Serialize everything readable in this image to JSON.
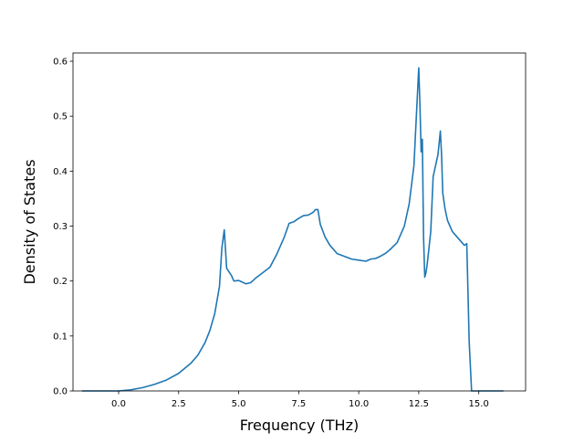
{
  "chart_data": {
    "type": "line",
    "title": "",
    "xlabel": "Frequency (THz)",
    "ylabel": "Density of States",
    "xlim": [
      -1.9,
      16.95
    ],
    "ylim": [
      0.0,
      0.615
    ],
    "xticks": [
      0.0,
      2.5,
      5.0,
      7.5,
      10.0,
      12.5,
      15.0
    ],
    "xtick_labels": [
      "0.0",
      "2.5",
      "5.0",
      "7.5",
      "10.0",
      "12.5",
      "15.0"
    ],
    "yticks": [
      0.0,
      0.1,
      0.2,
      0.3,
      0.4,
      0.5,
      0.6
    ],
    "ytick_labels": [
      "0.0",
      "0.1",
      "0.2",
      "0.3",
      "0.4",
      "0.5",
      "0.6"
    ],
    "grid": false,
    "legend": false,
    "line_color": "#1f77b4",
    "series": [
      {
        "x": [
          -1.5,
          -0.5,
          0.0,
          0.5,
          1.0,
          1.5,
          2.0,
          2.5,
          3.0,
          3.3,
          3.6,
          3.8,
          4.0,
          4.2,
          4.3,
          4.4,
          4.5,
          4.7,
          4.8,
          5.0,
          5.1,
          5.3,
          5.5,
          5.7,
          6.0,
          6.3,
          6.6,
          6.9,
          7.1,
          7.3,
          7.5,
          7.7,
          7.9,
          8.1,
          8.2,
          8.3,
          8.4,
          8.6,
          8.8,
          9.1,
          9.4,
          9.7,
          10.0,
          10.3,
          10.5,
          10.7,
          10.9,
          11.1,
          11.3,
          11.6,
          11.9,
          12.1,
          12.3,
          12.4,
          12.5,
          12.55,
          12.6,
          12.65,
          12.7,
          12.75,
          12.8,
          12.85,
          13.0,
          13.1,
          13.2,
          13.3,
          13.4,
          13.45,
          13.5,
          13.6,
          13.7,
          13.9,
          14.1,
          14.3,
          14.4,
          14.5,
          14.55,
          14.6,
          14.7,
          15.0,
          16.0
        ],
        "y": [
          0.0,
          0.0,
          0.0,
          0.002,
          0.006,
          0.012,
          0.02,
          0.032,
          0.05,
          0.065,
          0.088,
          0.11,
          0.14,
          0.19,
          0.26,
          0.293,
          0.223,
          0.21,
          0.2,
          0.201,
          0.199,
          0.195,
          0.197,
          0.205,
          0.215,
          0.225,
          0.25,
          0.28,
          0.305,
          0.308,
          0.314,
          0.319,
          0.32,
          0.325,
          0.33,
          0.33,
          0.303,
          0.28,
          0.265,
          0.25,
          0.245,
          0.24,
          0.238,
          0.236,
          0.24,
          0.241,
          0.245,
          0.25,
          0.257,
          0.27,
          0.3,
          0.34,
          0.41,
          0.5,
          0.588,
          0.52,
          0.435,
          0.458,
          0.28,
          0.207,
          0.215,
          0.23,
          0.29,
          0.39,
          0.41,
          0.43,
          0.473,
          0.43,
          0.36,
          0.33,
          0.31,
          0.29,
          0.28,
          0.27,
          0.265,
          0.268,
          0.18,
          0.09,
          0.0,
          0.0,
          0.0
        ]
      }
    ]
  }
}
